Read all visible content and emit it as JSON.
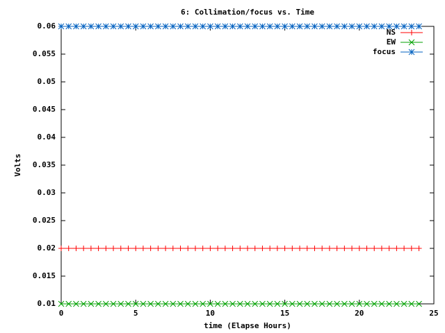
{
  "chart_data": {
    "type": "line",
    "title": "6: Collimation/focus vs. Time",
    "x_label": "time (Elapse Hours)",
    "y_label": "Volts",
    "x": [
      0,
      0.5,
      1,
      1.5,
      2,
      2.5,
      3,
      3.5,
      4,
      4.5,
      5,
      5.5,
      6,
      6.5,
      7,
      7.5,
      8,
      8.5,
      9,
      9.5,
      10,
      10.5,
      11,
      11.5,
      12,
      12.5,
      13,
      13.5,
      14,
      14.5,
      15,
      15.5,
      16,
      16.5,
      17,
      17.5,
      18,
      18.5,
      19,
      19.5,
      20,
      20.5,
      21,
      21.5,
      22,
      22.5,
      23,
      23.5,
      24
    ],
    "series": [
      {
        "name": "NS",
        "color": "#ff0000",
        "marker": "plus",
        "values": [
          0.02,
          0.02,
          0.02,
          0.02,
          0.02,
          0.02,
          0.02,
          0.02,
          0.02,
          0.02,
          0.02,
          0.02,
          0.02,
          0.02,
          0.02,
          0.02,
          0.02,
          0.02,
          0.02,
          0.02,
          0.02,
          0.02,
          0.02,
          0.02,
          0.02,
          0.02,
          0.02,
          0.02,
          0.02,
          0.02,
          0.02,
          0.02,
          0.02,
          0.02,
          0.02,
          0.02,
          0.02,
          0.02,
          0.02,
          0.02,
          0.02,
          0.02,
          0.02,
          0.02,
          0.02,
          0.02,
          0.02,
          0.02,
          0.02
        ]
      },
      {
        "name": "EW",
        "color": "#00a000",
        "marker": "cross",
        "values": [
          0.01,
          0.01,
          0.01,
          0.01,
          0.01,
          0.01,
          0.01,
          0.01,
          0.01,
          0.01,
          0.01,
          0.01,
          0.01,
          0.01,
          0.01,
          0.01,
          0.01,
          0.01,
          0.01,
          0.01,
          0.01,
          0.01,
          0.01,
          0.01,
          0.01,
          0.01,
          0.01,
          0.01,
          0.01,
          0.01,
          0.01,
          0.01,
          0.01,
          0.01,
          0.01,
          0.01,
          0.01,
          0.01,
          0.01,
          0.01,
          0.01,
          0.01,
          0.01,
          0.01,
          0.01,
          0.01,
          0.01,
          0.01,
          0.01
        ]
      },
      {
        "name": "focus",
        "color": "#0060c0",
        "marker": "star",
        "values": [
          0.06,
          0.06,
          0.06,
          0.06,
          0.06,
          0.06,
          0.06,
          0.06,
          0.06,
          0.06,
          0.06,
          0.06,
          0.06,
          0.06,
          0.06,
          0.06,
          0.06,
          0.06,
          0.06,
          0.06,
          0.06,
          0.06,
          0.06,
          0.06,
          0.06,
          0.06,
          0.06,
          0.06,
          0.06,
          0.06,
          0.06,
          0.06,
          0.06,
          0.06,
          0.06,
          0.06,
          0.06,
          0.06,
          0.06,
          0.06,
          0.06,
          0.06,
          0.06,
          0.06,
          0.06,
          0.06,
          0.06,
          0.06,
          0.06
        ]
      }
    ],
    "xlim": [
      0,
      25
    ],
    "xticks": [
      0,
      5,
      10,
      15,
      20,
      25
    ],
    "ylim": [
      0.01,
      0.06
    ],
    "yticks": [
      0.01,
      0.015,
      0.02,
      0.025,
      0.03,
      0.035,
      0.04,
      0.045,
      0.05,
      0.055,
      0.06
    ],
    "legend": "top-right"
  }
}
